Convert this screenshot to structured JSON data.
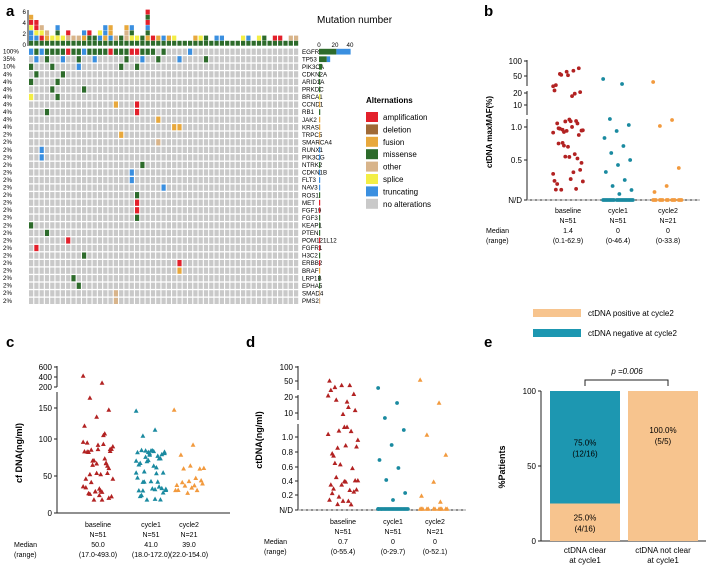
{
  "panel_labels": [
    "a",
    "b",
    "c",
    "d",
    "e"
  ],
  "colors": {
    "amplification": "#e3202b",
    "deletion": "#a06a36",
    "fusion": "#e8a83c",
    "missense": "#2d6b2b",
    "other": "#d8b48a",
    "splice": "#f3ee45",
    "truncating": "#3a8fe0",
    "no_alterations": "#c9c9c9",
    "baseline": "#b22222",
    "cycle1": "#1a8aa0",
    "cycle2": "#f29a3e",
    "positive": "#f7c48e",
    "negative": "#1d97b1"
  },
  "chart_data": [
    {
      "type": "heatmap",
      "panel": "a",
      "title": "Mutation number",
      "top_axis_ticks": [
        "0",
        "2",
        "4",
        "6"
      ],
      "side_axis_ticks": [
        "0",
        "20",
        "40"
      ],
      "genes": [
        "EGFR",
        "TP53",
        "PIK3CA",
        "CDKN2A",
        "ARID1A",
        "PRKDC",
        "BRCA1",
        "CCND1",
        "RB1",
        "JAK2",
        "KRAS",
        "TRPC5",
        "SMARCA4",
        "RUNX1",
        "PIK3CG",
        "NTRK2",
        "CDKN1B",
        "FLT3",
        "NAV3",
        "ROS1",
        "MET",
        "FGF19",
        "FGF3",
        "KEAP1",
        "PTEN",
        "POM121L12",
        "FGFR1",
        "H3C2",
        "ERBB2",
        "BRAF",
        "LRP1B",
        "EPHA5",
        "SMAD4",
        "PMS2"
      ],
      "frequencies": [
        "100%",
        "35%",
        "10%",
        "4%",
        "4%",
        "4%",
        "4%",
        "4%",
        "4%",
        "4%",
        "4%",
        "2%",
        "2%",
        "2%",
        "2%",
        "2%",
        "2%",
        "2%",
        "2%",
        "2%",
        "2%",
        "2%",
        "2%",
        "2%",
        "2%",
        "2%",
        "2%",
        "2%",
        "2%",
        "2%",
        "2%",
        "2%",
        "2%",
        "2%"
      ],
      "alterations_legend_title": "Alternations",
      "legend": [
        "amplification",
        "deletion",
        "fusion",
        "missense",
        "other",
        "splice",
        "truncating",
        "no alterations"
      ],
      "n_samples": 51
    },
    {
      "type": "scatter",
      "panel": "b",
      "ylabel": "ctDNA maxMAF(%)",
      "y_ticks": [
        "100",
        "50",
        "20",
        "10",
        "1.0",
        "0.5",
        "N/D"
      ],
      "groups": [
        {
          "name": "baseline",
          "n": "N=51",
          "median": "1.4",
          "range": "(0.1-62.9)"
        },
        {
          "name": "cycle1",
          "n": "N=51",
          "median": "0",
          "range": "(0-46.4)"
        },
        {
          "name": "cycle2",
          "n": "N=21",
          "median": "0",
          "range": "(0-33.8)"
        }
      ],
      "median_label": "Median",
      "range_label": "(range)"
    },
    {
      "type": "scatter",
      "panel": "c",
      "ylabel": "cf DNA(ng/ml)",
      "y_ticks": [
        "600",
        "400",
        "200",
        "150",
        "100",
        "50",
        "0"
      ],
      "groups": [
        {
          "name": "baseline",
          "n": "N=51",
          "median": "50.0",
          "range": "(17.0-493.0)"
        },
        {
          "name": "cycle1",
          "n": "N=51",
          "median": "41.0",
          "range": "(18.0-172.0)"
        },
        {
          "name": "cycle2",
          "n": "N=21",
          "median": "39.0",
          "range": "(22.0-154.0)"
        }
      ],
      "median_label": "Median",
      "range_label": "(range)"
    },
    {
      "type": "scatter",
      "panel": "d",
      "ylabel": "ctDNA(ng/ml)",
      "y_ticks": [
        "100",
        "50",
        "20",
        "10",
        "1.0",
        "0.8",
        "0.6",
        "0.4",
        "0.2",
        "N/D"
      ],
      "groups": [
        {
          "name": "baseline",
          "n": "N=51",
          "median": "0.7",
          "range": "(0-55.4)"
        },
        {
          "name": "cycle1",
          "n": "N=51",
          "median": "0",
          "range": "(0-29.7)"
        },
        {
          "name": "cycle2",
          "n": "N=21",
          "median": "0",
          "range": "(0-52.1)"
        }
      ],
      "median_label": "Median",
      "range_label": "(range)"
    },
    {
      "type": "bar",
      "panel": "e",
      "ylabel": "%Patients",
      "y_ticks": [
        "100",
        "50",
        "0"
      ],
      "ylim": [
        0,
        100
      ],
      "legend": [
        "ctDNA positive at cycle2",
        "ctDNA negative at cycle2"
      ],
      "p_value_label": "p =0.006",
      "categories": [
        {
          "line1": "ctDNA  clear",
          "line2": "at cycle1"
        },
        {
          "line1": "ctDNA  not clear",
          "line2": "at cycle1"
        }
      ],
      "series": [
        {
          "name": "ctDNA negative at cycle2",
          "values": [
            75.0,
            0
          ],
          "labels": [
            "75.0%",
            "(12/16)"
          ]
        },
        {
          "name": "ctDNA positive at cycle2",
          "values": [
            25.0,
            100.0
          ],
          "labels_a": [
            "25.0%",
            "(4/16)"
          ],
          "labels_b": [
            "100.0%",
            "(5/5)"
          ]
        }
      ]
    }
  ]
}
